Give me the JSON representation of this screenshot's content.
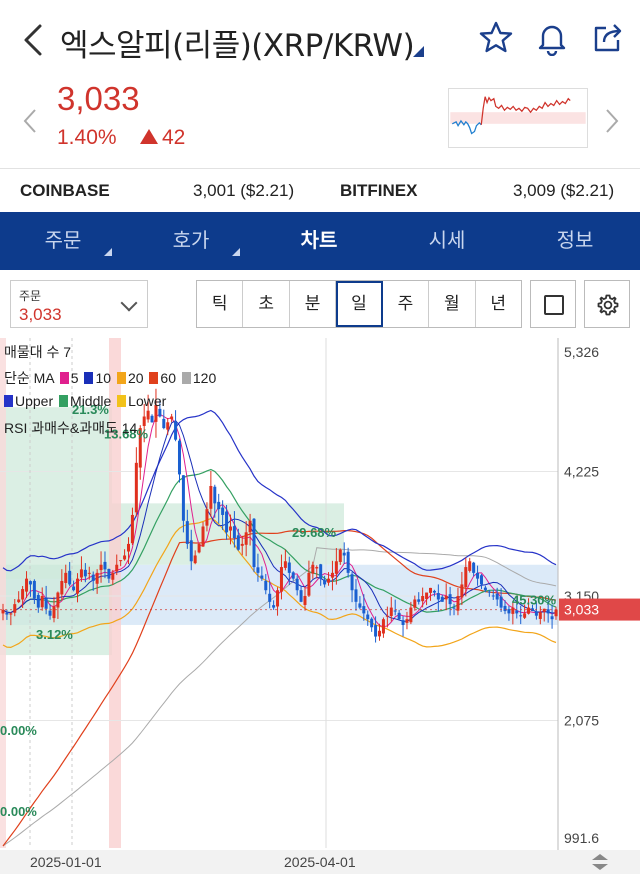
{
  "header": {
    "title": "엑스알피(리플)(XRP/KRW)",
    "icons": [
      "back-icon",
      "star-icon",
      "bell-icon",
      "share-icon"
    ]
  },
  "quote": {
    "price": "3,033",
    "change_pct": "1.40%",
    "change_abs": "42",
    "color": "#d0342c"
  },
  "exchanges": [
    {
      "name": "COINBASE",
      "value": "3,001 ($2.21)"
    },
    {
      "name": "BITFINEX",
      "value": "3,009 ($2.21)"
    }
  ],
  "tabs": [
    {
      "label": "주문",
      "active": false
    },
    {
      "label": "호가",
      "active": false
    },
    {
      "label": "차트",
      "active": true
    },
    {
      "label": "시세",
      "active": false
    },
    {
      "label": "정보",
      "active": false
    }
  ],
  "toolbar": {
    "order_label": "주문",
    "order_value": "3,033",
    "periods": [
      "틱",
      "초",
      "분",
      "일",
      "주",
      "월",
      "년"
    ],
    "active_period": "일"
  },
  "legend": {
    "line1": "매물대 수 7",
    "line2_prefix": "단순 MA",
    "ma": [
      {
        "label": "5",
        "color": "#e0208e"
      },
      {
        "label": "10",
        "color": "#1a2fb8"
      },
      {
        "label": "20",
        "color": "#f2a51a"
      },
      {
        "label": "60",
        "color": "#e0401c"
      },
      {
        "label": "120",
        "color": "#aaaaaa"
      }
    ],
    "bb": [
      {
        "label": "Upper",
        "color": "#2633c8"
      },
      {
        "label": "Middle",
        "color": "#34a062"
      },
      {
        "label": "Lower",
        "color": "#f2c21a"
      }
    ],
    "line4": "RSI 과매수&과매도 14"
  },
  "chart_data": {
    "type": "candlestick",
    "y_axis_labels": [
      "5,326",
      "4,225",
      "3,150",
      "2,075",
      "991.6"
    ],
    "y_axis_values": [
      5326,
      4225,
      3150,
      2075,
      991.6
    ],
    "current_price_label": "3,033",
    "current_price": 3033,
    "x_axis_labels": [
      "2025-01-01",
      "2025-04-01"
    ],
    "volume_profile_labels": [
      "13.68%",
      "29.68%",
      "3.12%",
      "0.00%",
      "0.00%",
      "21.3%",
      "45.30%"
    ],
    "colors": {
      "up": "#e0301e",
      "down": "#1a5fd0",
      "ma5": "#e0208e",
      "ma10": "#1a2fb8",
      "ma20": "#f2a51a",
      "ma60": "#e0401c",
      "ma120": "#aaaaaa",
      "upper": "#2633c8",
      "middle": "#34a062",
      "lower": "#f2c21a"
    },
    "closes": [
      3030,
      2990,
      3000,
      3080,
      3120,
      3210,
      3300,
      3250,
      3130,
      3050,
      3150,
      3040,
      2980,
      3060,
      3180,
      3280,
      3350,
      3250,
      3200,
      3300,
      3380,
      3320,
      3350,
      3280,
      3350,
      3420,
      3380,
      3300,
      3350,
      3420,
      3460,
      3500,
      3600,
      3850,
      4300,
      4600,
      4700,
      4750,
      4650,
      4800,
      4700,
      4600,
      4650,
      4700,
      4500,
      4200,
      3800,
      3600,
      3450,
      3500,
      3600,
      3750,
      3900,
      4100,
      3950,
      3900,
      3850,
      3700,
      3750,
      3650,
      3550,
      3600,
      3700,
      3800,
      3400,
      3350,
      3300,
      3200,
      3100,
      3050,
      3200,
      3400,
      3450,
      3350,
      3300,
      3200,
      3100,
      3150,
      3350,
      3420,
      3400,
      3300,
      3250,
      3300,
      3350,
      3450,
      3550,
      3500,
      3350,
      3200,
      3100,
      3050,
      3000,
      2950,
      2880,
      2800,
      2850,
      2950,
      2980,
      3050,
      3020,
      2950,
      2900,
      2950,
      3050,
      3120,
      3100,
      3150,
      3180,
      3220,
      3180,
      3120,
      3100,
      3150,
      3080,
      3050,
      3150,
      3250,
      3400,
      3450,
      3350,
      3300,
      3250,
      3200,
      3180,
      3150,
      3120,
      3050,
      3020,
      3000,
      3050,
      3000,
      2980,
      3000,
      3050,
      3020,
      2980,
      3010,
      3040,
      3000,
      2950,
      3033
    ]
  }
}
